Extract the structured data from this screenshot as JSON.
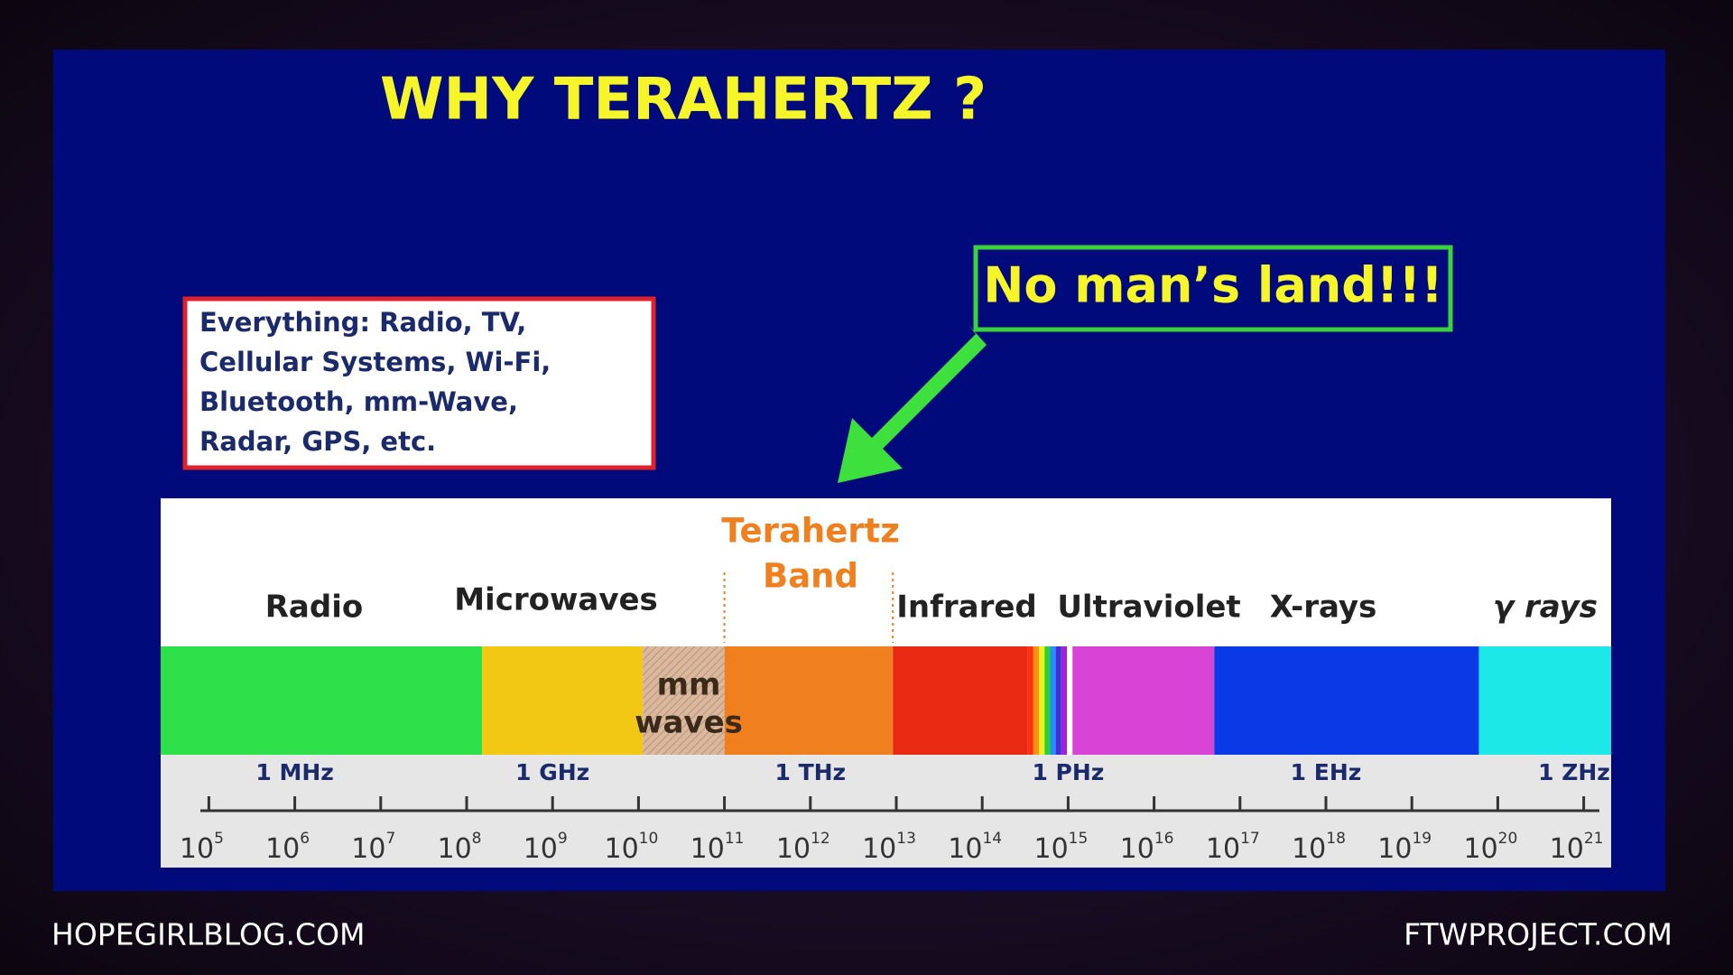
{
  "slide": {
    "title": "WHY TERAHERTZ ?",
    "note_lines": [
      "Everything: Radio, TV,",
      "Cellular Systems, Wi-Fi,",
      "Bluetooth, mm-Wave,",
      "Radar, GPS, etc."
    ],
    "callout": "No man’s land!!!"
  },
  "spectrum": {
    "bands": [
      "Radio",
      "Microwaves",
      "Infrared",
      "Ultraviolet",
      "X-rays",
      "γ rays"
    ],
    "terahertz_band": [
      "Terahertz",
      "Band"
    ],
    "mm_waves": [
      "mm",
      "waves"
    ],
    "frequency_labels": [
      "1 MHz",
      "1 GHz",
      "1 THz",
      "1 PHz",
      "1 EHz",
      "1 ZHz"
    ],
    "scale": {
      "base": "10",
      "exponents": [
        5,
        6,
        7,
        8,
        9,
        10,
        11,
        12,
        13,
        14,
        15,
        16,
        17,
        18,
        19,
        20,
        21
      ]
    }
  },
  "footer": {
    "left": "HOPEGIRLBLOG.COM",
    "right": "FTWPROJECT.COM"
  }
}
